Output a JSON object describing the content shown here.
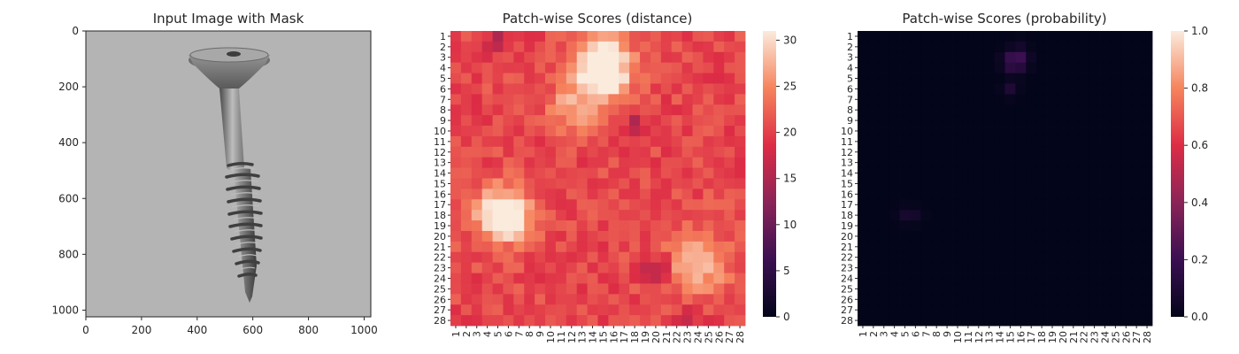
{
  "chart_data": [
    {
      "type": "image",
      "title": "Input Image with Mask",
      "xlabel": "",
      "ylabel": "",
      "xlim": [
        0,
        1024
      ],
      "ylim": [
        1024,
        0
      ],
      "xticks": [
        "0",
        "200",
        "400",
        "600",
        "800",
        "1000"
      ],
      "yticks": [
        "0",
        "200",
        "400",
        "600",
        "800",
        "1000"
      ],
      "content": "grayscale photo of a single countersunk screw, head at top, tip at bottom"
    },
    {
      "type": "heatmap",
      "title": "Patch-wise Scores (distance)",
      "xlabel": "",
      "ylabel": "",
      "rows": 28,
      "cols": 28,
      "row_labels": [
        "1",
        "2",
        "3",
        "4",
        "5",
        "6",
        "7",
        "8",
        "9",
        "10",
        "11",
        "12",
        "13",
        "14",
        "15",
        "16",
        "17",
        "18",
        "19",
        "20",
        "21",
        "22",
        "23",
        "24",
        "25",
        "26",
        "27",
        "28"
      ],
      "col_labels": [
        "1",
        "2",
        "3",
        "4",
        "5",
        "6",
        "7",
        "8",
        "9",
        "10",
        "11",
        "12",
        "13",
        "14",
        "15",
        "16",
        "17",
        "18",
        "19",
        "20",
        "21",
        "22",
        "23",
        "24",
        "25",
        "26",
        "27",
        "28"
      ],
      "colorbar_range": [
        0,
        31
      ],
      "colorbar_ticks": [
        "0",
        "5",
        "10",
        "15",
        "20",
        "25",
        "30"
      ],
      "colormap": "rocket",
      "value_range_observed": [
        15,
        31
      ],
      "hotspots_approx": [
        {
          "row": 3,
          "col": 15,
          "value": 31
        },
        {
          "row": 5,
          "col": 15,
          "value": 29
        },
        {
          "row": 18,
          "col": 5,
          "value": 28
        },
        {
          "row": 18,
          "col": 6,
          "value": 28
        },
        {
          "row": 8,
          "col": 12,
          "value": 27
        },
        {
          "row": 23,
          "col": 24,
          "value": 27
        }
      ],
      "low_spots_approx": [
        {
          "row": 1,
          "col": 5,
          "value": 16
        },
        {
          "row": 9,
          "col": 18,
          "value": 16
        },
        {
          "row": 23,
          "col": 20,
          "value": 15
        },
        {
          "row": 28,
          "col": 23,
          "value": 16
        }
      ]
    },
    {
      "type": "heatmap",
      "title": "Patch-wise Scores (probability)",
      "xlabel": "",
      "ylabel": "",
      "rows": 28,
      "cols": 28,
      "row_labels": [
        "1",
        "2",
        "3",
        "4",
        "5",
        "6",
        "7",
        "8",
        "9",
        "10",
        "11",
        "12",
        "13",
        "14",
        "15",
        "16",
        "17",
        "18",
        "19",
        "20",
        "21",
        "22",
        "23",
        "24",
        "25",
        "26",
        "27",
        "28"
      ],
      "col_labels": [
        "1",
        "2",
        "3",
        "4",
        "5",
        "6",
        "7",
        "8",
        "9",
        "10",
        "11",
        "12",
        "13",
        "14",
        "15",
        "16",
        "17",
        "18",
        "19",
        "20",
        "21",
        "22",
        "23",
        "24",
        "25",
        "26",
        "27",
        "28"
      ],
      "colorbar_range": [
        0,
        1
      ],
      "colorbar_ticks": [
        "0.0",
        "0.2",
        "0.4",
        "0.6",
        "0.8",
        "1.0"
      ],
      "colormap": "rocket",
      "hotspots_approx": [
        {
          "row": 3,
          "col": 15,
          "value": 0.18
        },
        {
          "row": 3,
          "col": 16,
          "value": 0.2
        },
        {
          "row": 4,
          "col": 15,
          "value": 0.14
        },
        {
          "row": 4,
          "col": 16,
          "value": 0.12
        },
        {
          "row": 6,
          "col": 15,
          "value": 0.1
        },
        {
          "row": 2,
          "col": 16,
          "value": 0.06
        },
        {
          "row": 18,
          "col": 5,
          "value": 0.07
        },
        {
          "row": 18,
          "col": 6,
          "value": 0.06
        }
      ]
    }
  ],
  "colors": {
    "background": "#ffffff",
    "axis": "#262626",
    "rocket_stops": [
      "#03051a",
      "#3b0f51",
      "#8a2458",
      "#dd2c45",
      "#f6845d",
      "#faebdd"
    ]
  }
}
